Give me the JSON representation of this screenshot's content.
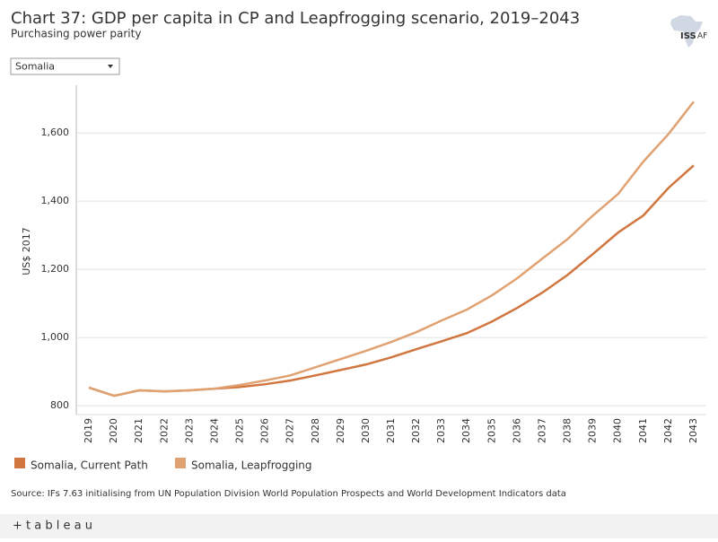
{
  "chart_data": {
    "type": "line",
    "title": "Chart 37: GDP per capita in CP and Leapfrogging scenario, 2019–2043",
    "subtitle": "Purchasing power parity",
    "filter": "Somalia",
    "logo": {
      "main": "ISS",
      "suffix": "AF"
    },
    "y_label": "US$ 2017",
    "categories": [
      "2019",
      "2020",
      "2021",
      "2022",
      "2023",
      "2024",
      "2025",
      "2026",
      "2027",
      "2028",
      "2029",
      "2030",
      "2031",
      "2032",
      "2033",
      "2034",
      "2035",
      "2036",
      "2037",
      "2038",
      "2039",
      "2040",
      "2041",
      "2042",
      "2043"
    ],
    "series": [
      {
        "name": "Somalia, Current Path",
        "color": "#d0763e",
        "values": [
          853,
          829,
          845,
          842,
          845,
          850,
          855,
          863,
          874,
          889,
          905,
          921,
          942,
          966,
          989,
          1013,
          1047,
          1087,
          1132,
          1184,
          1245,
          1308,
          1358,
          1439,
          1505
        ]
      },
      {
        "name": "Somalia, Leapfrogging",
        "color": "#e0a272",
        "values": [
          853,
          829,
          845,
          842,
          845,
          850,
          861,
          874,
          889,
          913,
          937,
          961,
          987,
          1016,
          1050,
          1082,
          1124,
          1174,
          1232,
          1289,
          1358,
          1421,
          1516,
          1597,
          1692
        ]
      }
    ],
    "ylim": [
      774,
      1740
    ],
    "yticks": [
      800,
      {
        "value": 1000,
        "label": "1,000"
      },
      {
        "value": 1200,
        "label": "1,200"
      },
      {
        "value": 1400,
        "label": "1,400"
      },
      {
        "value": 1600,
        "label": "1,600"
      }
    ],
    "grid": true,
    "source": "Source: IFs 7.63 initialising from UN Population Division World Population Prospects and World Development Indicators data",
    "footer": "+ t a b l e a u"
  }
}
